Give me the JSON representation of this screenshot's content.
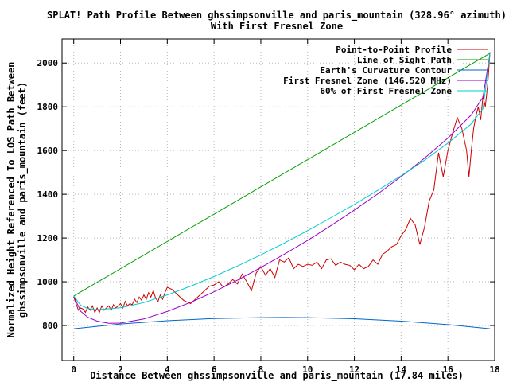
{
  "chart_data": {
    "type": "line",
    "title": "SPLAT! Path Profile Between ghssimpsonville and paris_mountain (328.96° azimuth)",
    "subtitle": "With First Fresnel Zone",
    "xlabel": "Distance Between ghssimpsonville and paris_mountain (17.84 miles)",
    "ylabel_line1": "Normalized Height Referenced To LOS Path Between",
    "ylabel_line2": "ghssimpsonville and paris_mountain (feet)",
    "xlim": [
      -0.5,
      18
    ],
    "ylim": [
      640,
      2110
    ],
    "x_ticks": [
      0,
      2,
      4,
      6,
      8,
      10,
      12,
      14,
      16,
      18
    ],
    "y_ticks": [
      800,
      1000,
      1200,
      1400,
      1600,
      1800,
      2000
    ],
    "grid": true,
    "legend_position": "top-right",
    "series": [
      {
        "name": "Point-to-Point Profile",
        "color": "#cc0000",
        "x": [
          0,
          0.1,
          0.2,
          0.3,
          0.4,
          0.5,
          0.6,
          0.7,
          0.8,
          0.9,
          1.0,
          1.1,
          1.2,
          1.3,
          1.4,
          1.5,
          1.6,
          1.7,
          1.8,
          1.9,
          2.0,
          2.1,
          2.2,
          2.3,
          2.4,
          2.5,
          2.6,
          2.7,
          2.8,
          2.9,
          3.0,
          3.1,
          3.2,
          3.3,
          3.4,
          3.5,
          3.6,
          3.7,
          3.8,
          3.9,
          4.0,
          4.1,
          4.2,
          4.3,
          4.4,
          4.5,
          4.6,
          4.7,
          4.8,
          4.9,
          5.0,
          5.2,
          5.4,
          5.6,
          5.8,
          6.0,
          6.2,
          6.4,
          6.6,
          6.8,
          7.0,
          7.2,
          7.4,
          7.6,
          7.8,
          8.0,
          8.2,
          8.4,
          8.6,
          8.8,
          9.0,
          9.2,
          9.4,
          9.6,
          9.8,
          10.0,
          10.2,
          10.4,
          10.6,
          10.8,
          11.0,
          11.2,
          11.4,
          11.6,
          11.8,
          12.0,
          12.2,
          12.4,
          12.6,
          12.8,
          13.0,
          13.2,
          13.4,
          13.6,
          13.8,
          14.0,
          14.2,
          14.4,
          14.6,
          14.8,
          15.0,
          15.2,
          15.4,
          15.6,
          15.8,
          16.0,
          16.2,
          16.4,
          16.6,
          16.8,
          16.9,
          17.0,
          17.1,
          17.2,
          17.3,
          17.4,
          17.5,
          17.6,
          17.7,
          17.8
        ],
        "y": [
          930,
          900,
          870,
          880,
          875,
          860,
          885,
          870,
          890,
          860,
          880,
          860,
          890,
          870,
          880,
          890,
          870,
          895,
          880,
          890,
          900,
          880,
          910,
          890,
          900,
          895,
          920,
          905,
          930,
          915,
          940,
          920,
          950,
          930,
          960,
          925,
          910,
          940,
          920,
          950,
          975,
          970,
          965,
          955,
          945,
          935,
          925,
          915,
          910,
          905,
          900,
          920,
          940,
          960,
          980,
          985,
          1000,
          975,
          990,
          1010,
          990,
          1035,
          1000,
          960,
          1040,
          1070,
          1030,
          1060,
          1020,
          1100,
          1090,
          1110,
          1060,
          1080,
          1070,
          1080,
          1075,
          1090,
          1060,
          1100,
          1105,
          1075,
          1090,
          1080,
          1075,
          1055,
          1080,
          1060,
          1070,
          1100,
          1080,
          1125,
          1140,
          1160,
          1170,
          1210,
          1240,
          1290,
          1260,
          1170,
          1250,
          1370,
          1420,
          1590,
          1480,
          1600,
          1680,
          1750,
          1700,
          1600,
          1480,
          1600,
          1700,
          1760,
          1800,
          1740,
          1850,
          1800,
          1900,
          2050
        ]
      },
      {
        "name": "Line of Sight Path",
        "color": "#00a000",
        "x": [
          0,
          17.8
        ],
        "y": [
          935,
          2045
        ]
      },
      {
        "name": "Earth's Curvature Contour",
        "color": "#0066cc",
        "x": [
          0,
          2,
          4,
          6,
          8,
          9,
          10,
          12,
          14,
          16,
          17.8
        ],
        "y": [
          785,
          807,
          822,
          832,
          836,
          837,
          836,
          831,
          820,
          804,
          785
        ]
      },
      {
        "name": "First Fresnel Zone (146.520 MHz)",
        "color": "#9900cc",
        "x": [
          0,
          0.3,
          0.6,
          1,
          1.5,
          2,
          3,
          4,
          5,
          6,
          7,
          8,
          9,
          10,
          11,
          12,
          13,
          14,
          15,
          16,
          17,
          17.5,
          17.8
        ],
        "y": [
          935,
          865,
          838,
          820,
          810,
          811,
          830,
          864,
          906,
          954,
          1007,
          1065,
          1126,
          1189,
          1257,
          1328,
          1402,
          1481,
          1565,
          1657,
          1763,
          1844,
          2045
        ]
      },
      {
        "name": "60% of First Fresnel Zone",
        "color": "#00cccc",
        "x": [
          0,
          0.3,
          0.6,
          1,
          2,
          3,
          4,
          5,
          6,
          7,
          8,
          9,
          10,
          11,
          12,
          13,
          14,
          15,
          16,
          17,
          17.5,
          17.8
        ],
        "y": [
          935,
          892,
          878,
          872,
          881,
          905,
          940,
          980,
          1024,
          1072,
          1123,
          1177,
          1234,
          1293,
          1354,
          1418,
          1485,
          1556,
          1634,
          1722,
          1792,
          2045
        ]
      }
    ]
  }
}
